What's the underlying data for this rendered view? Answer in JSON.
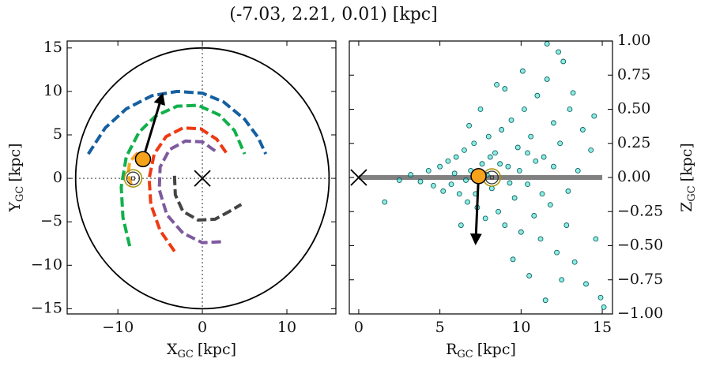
{
  "title": "(-7.03, 2.21, 0.01) [kpc]",
  "chart_data": [
    {
      "type": "line",
      "xlabel": {
        "main": "X",
        "sub": "GC",
        "unit": "[kpc]"
      },
      "ylabel": {
        "main": "Y",
        "sub": "GC",
        "unit": "[kpc]"
      },
      "xlim": [
        -16,
        15.8
      ],
      "ylim": [
        -15.6,
        15.8
      ],
      "xticks": [
        {
          "value": -10,
          "label": "−10"
        },
        0,
        10
      ],
      "yticks": [
        {
          "value": -15,
          "label": "−15"
        },
        {
          "value": -10,
          "label": "−10"
        },
        {
          "value": -5,
          "label": "−5"
        },
        0,
        5,
        10,
        15
      ],
      "circle_radius": 15,
      "series": [
        {
          "color": "#1560a0",
          "x": [
            -13.5,
            -11.5,
            -9,
            -6,
            -3,
            0,
            2.5,
            5,
            6.6,
            7.5
          ],
          "values": [
            2.8,
            5.8,
            8,
            9.5,
            10,
            9.8,
            8.8,
            6.8,
            4.7,
            2.8
          ]
        },
        {
          "color": "#10b04a",
          "x": [
            -8.6,
            -9.4,
            -9.6,
            -9,
            -7.5,
            -5.5,
            -3,
            -0.5,
            2,
            3.8,
            5
          ],
          "values": [
            -7.8,
            -4.5,
            -1,
            2.5,
            5.3,
            7.2,
            8.3,
            8.4,
            7.3,
            5.5,
            2.8
          ]
        },
        {
          "color": "#ee3a12",
          "x": [
            -3.3,
            -5,
            -6.1,
            -6.3,
            -5.7,
            -4.3,
            -2.3,
            -0.2,
            1.7,
            3
          ],
          "values": [
            -8.4,
            -6,
            -3,
            0,
            2.8,
            4.8,
            5.8,
            5.7,
            4.5,
            2.7
          ]
        },
        {
          "color": "#7e5a9e",
          "x": [
            2.2,
            0,
            -2.3,
            -4.2,
            -5.1,
            -5,
            -3.9,
            -2,
            0,
            1.6
          ],
          "values": [
            -7.3,
            -7.4,
            -6.3,
            -4.2,
            -1.3,
            1.3,
            3.3,
            4.3,
            4.2,
            3.1
          ]
        },
        {
          "color": "#444444",
          "x": [
            -3.3,
            -3.2,
            -2.3,
            -0.5,
            1.5,
            3.2,
            4.6
          ],
          "values": [
            0.3,
            -1.9,
            -3.8,
            -4.8,
            -4.7,
            -3.8,
            -3
          ]
        },
        {
          "color": "#f5a623",
          "x": [
            -8.4,
            -8.8,
            -8.6,
            -7.6
          ],
          "values": [
            -0.8,
            0.5,
            1.9,
            3
          ]
        }
      ],
      "sun": [
        -8.2,
        0
      ],
      "point": [
        -7.03,
        2.21
      ],
      "arrow_to": [
        -4.75,
        9.6
      ]
    },
    {
      "type": "scatter",
      "xlabel": {
        "main": "R",
        "sub": "GC",
        "unit": "[kpc]"
      },
      "ylabel": {
        "main": "Z",
        "sub": "GC",
        "unit": "[kpc]"
      },
      "xlim": [
        -0.58,
        15.63
      ],
      "ylim": [
        -1,
        1
      ],
      "xticks": [
        0,
        5,
        10,
        15
      ],
      "yticks": [
        {
          "value": -1,
          "label": "−1.00"
        },
        {
          "value": -0.75,
          "label": "−0.75"
        },
        {
          "value": -0.5,
          "label": "−0.50"
        },
        {
          "value": -0.25,
          "label": "−0.25"
        },
        {
          "value": 0,
          "label": "0.00"
        },
        0.25,
        {
          "value": 0.5,
          "label": "0.50"
        },
        0.75,
        {
          "value": 1,
          "label": "1.00"
        }
      ],
      "color": "#40e0d0",
      "x": [
        3.2,
        3.8,
        4.3,
        4.6,
        5.0,
        5.2,
        5.5,
        5.7,
        6.0,
        6.2,
        6.5,
        6.7,
        6.9,
        7.1,
        7.3,
        7.6,
        7.8,
        8.0,
        8.2,
        8.4,
        8.6,
        8.8,
        9.0,
        9.2,
        9.4,
        9.6,
        9.8,
        10.0,
        10.2,
        10.4,
        10.6,
        10.8,
        11.0,
        11.2,
        11.4,
        11.6,
        11.8,
        12.0,
        12.2,
        12.4,
        12.6,
        12.8,
        13.0,
        13.3,
        13.5,
        13.8,
        14.0,
        14.3,
        14.6,
        14.9,
        15.1,
        1.6,
        2.5,
        9.5,
        10.5,
        11.5,
        12.5,
        11.6,
        12.3,
        9.0,
        8.5,
        10.1,
        6.8,
        6.3,
        7.5,
        13.2,
        14.5,
        12.9,
        10.9,
        9.9,
        7.9,
        6.6,
        5.9,
        9.3,
        11.3,
        8.7,
        10.4,
        12.0,
        7.2,
        8.1
      ],
      "values": [
        0.02,
        -0.03,
        0.05,
        -0.06,
        0.08,
        -0.1,
        0.12,
        -0.05,
        0.15,
        -0.12,
        0.2,
        -0.18,
        0.05,
        0.25,
        -0.22,
        0.1,
        -0.3,
        0.3,
        -0.08,
        0.18,
        -0.25,
        0.35,
        -0.35,
        0.08,
        0.42,
        -0.15,
        0.22,
        -0.4,
        0.5,
        -0.05,
        0.3,
        -0.28,
        0.6,
        -0.45,
        0.15,
        0.72,
        -0.2,
        0.4,
        -0.55,
        0.25,
        0.85,
        -0.35,
        0.5,
        -0.62,
        0.05,
        0.35,
        -0.78,
        0.2,
        -0.45,
        -0.88,
        -0.95,
        -0.18,
        -0.02,
        -0.6,
        -0.72,
        -0.9,
        -0.75,
        0.98,
        0.92,
        0.65,
        0.68,
        0.78,
        0.38,
        -0.35,
        0.5,
        0.62,
        0.45,
        -0.1,
        0.12,
        0.05,
        0.02,
        -0.02,
        0.03,
        -0.04,
        -0.12,
        0.1,
        0.18,
        0.08,
        -0.12,
        0.15
      ],
      "disk": [
        0,
        15
      ],
      "sun": [
        8.2,
        0
      ],
      "point": [
        7.38,
        0.01
      ],
      "arrow_to": [
        7.2,
        -0.48
      ]
    }
  ]
}
